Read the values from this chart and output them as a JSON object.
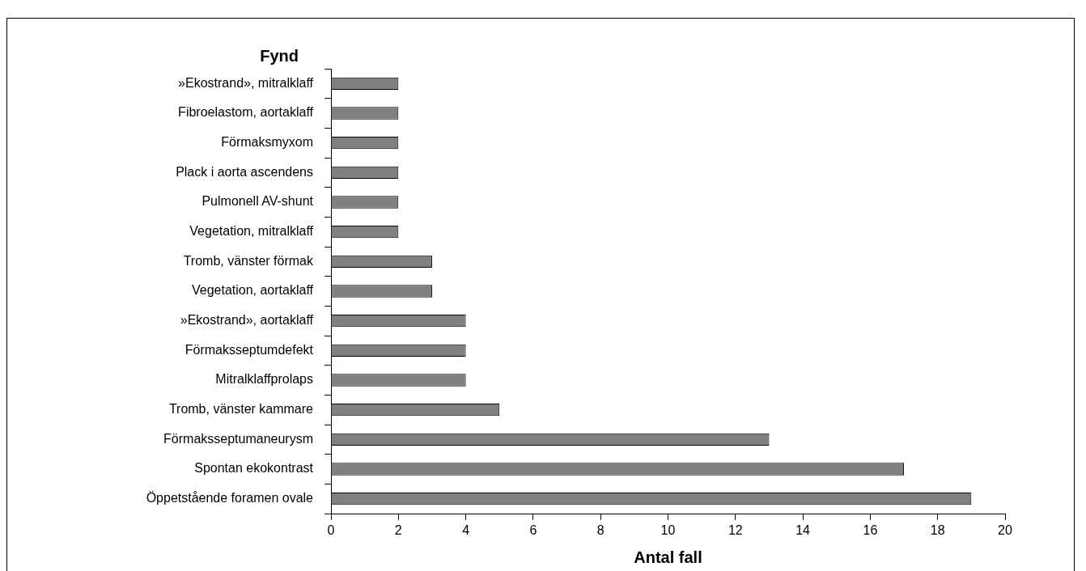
{
  "chart_data": {
    "type": "bar",
    "orientation": "horizontal",
    "ylabel": "Fynd",
    "xlabel": "Antal fall",
    "categories": [
      "»Ekostrand», mitralklaff",
      "Fibroelastom, aortaklaff",
      "Förmaksmyxom",
      "Plack i aorta ascendens",
      "Pulmonell AV-shunt",
      "Vegetation, mitralklaff",
      "Tromb, vänster förmak",
      "Vegetation, aortaklaff",
      "»Ekostrand», aortaklaff",
      "Förmaksseptumdefekt",
      "Mitralklaffprolaps",
      "Tromb, vänster kammare",
      "Förmaksseptumaneurysm",
      "Spontan ekokontrast",
      "Öppetstående foramen ovale"
    ],
    "values": [
      2,
      2,
      2,
      2,
      2,
      2,
      3,
      3,
      4,
      4,
      4,
      5,
      13,
      17,
      19
    ],
    "color": "#808080",
    "xlim": [
      0,
      20
    ],
    "xticks": [
      0,
      2,
      4,
      6,
      8,
      10,
      12,
      14,
      16,
      18,
      20
    ],
    "grid": false,
    "legend": false
  }
}
